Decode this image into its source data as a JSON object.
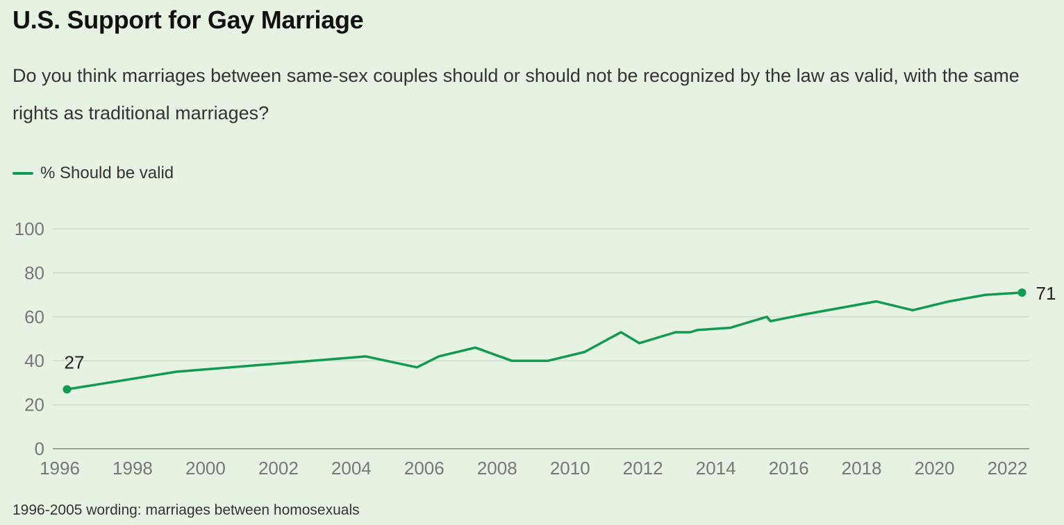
{
  "title": "U.S. Support for Gay Marriage",
  "subtitle": "Do you think marriages between same-sex couples should or should not be recognized by the law as valid, with the same rights as traditional marriages?",
  "footnote": "1996-2005 wording: marriages between homosexuals",
  "colors": {
    "line": "#129a52",
    "grid": "#cfdccd",
    "background": "#e6f3e2"
  },
  "chart_data": {
    "type": "line",
    "title": "U.S. Support for Gay Marriage",
    "series": [
      {
        "name": "% Should be valid",
        "x": [
          1996.2,
          1999.2,
          2004.4,
          2005.8,
          2006.4,
          2007.4,
          2008.4,
          2009.4,
          2010.4,
          2011.4,
          2011.9,
          2012.9,
          2013.3,
          2013.5,
          2014.4,
          2015.4,
          2015.5,
          2016.4,
          2017.4,
          2018.4,
          2019.4,
          2020.4,
          2021.4,
          2022.4
        ],
        "values": [
          27,
          35,
          42,
          37,
          42,
          46,
          40,
          40,
          44,
          53,
          48,
          53,
          53,
          54,
          55,
          60,
          58,
          61,
          64,
          67,
          63,
          67,
          70,
          71
        ]
      }
    ],
    "data_labels": [
      {
        "x": 1996.2,
        "y": 27,
        "text": "27"
      },
      {
        "x": 2022.4,
        "y": 71,
        "text": "71"
      }
    ],
    "xlim": [
      1996,
      2022.8
    ],
    "ylim": [
      0,
      100
    ],
    "x_ticks": [
      "1996",
      "1998",
      "2000",
      "2002",
      "2004",
      "2006",
      "2008",
      "2010",
      "2012",
      "2014",
      "2016",
      "2018",
      "2020",
      "2022"
    ],
    "y_ticks": [
      "0",
      "20",
      "40",
      "60",
      "80",
      "100"
    ],
    "grid": true,
    "legend_position": "top-left"
  }
}
